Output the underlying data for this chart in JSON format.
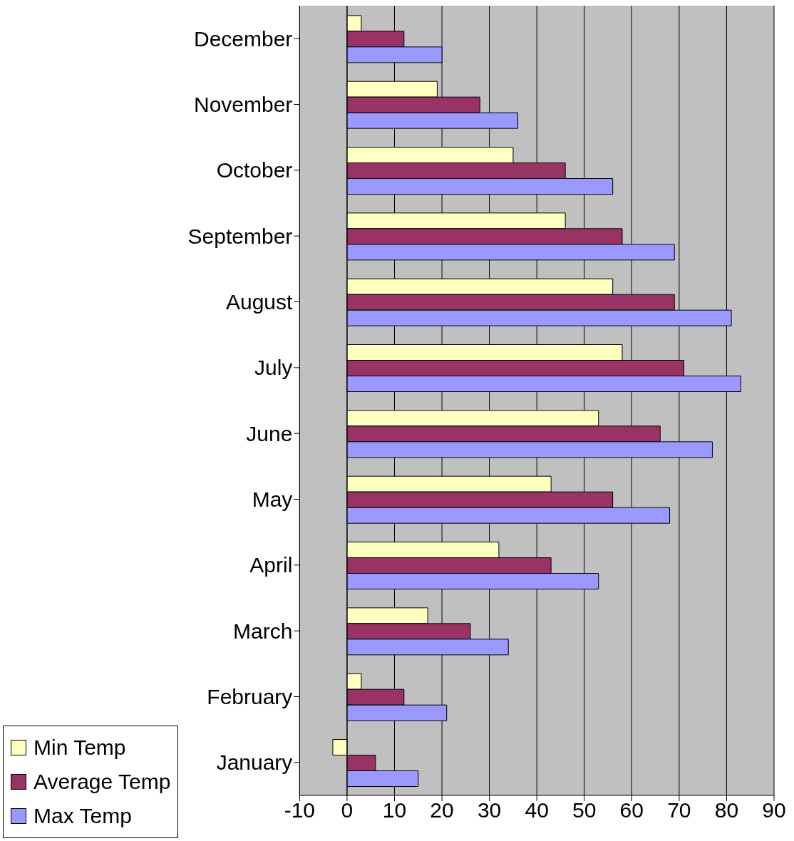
{
  "chart_data": {
    "type": "bar",
    "orientation": "horizontal",
    "categories": [
      "December",
      "November",
      "October",
      "September",
      "August",
      "July",
      "June",
      "May",
      "April",
      "March",
      "February",
      "January"
    ],
    "series": [
      {
        "name": "Min Temp",
        "color": "#ffffc0",
        "values": [
          3,
          19,
          35,
          46,
          56,
          58,
          53,
          43,
          32,
          17,
          3,
          -3
        ]
      },
      {
        "name": "Average Temp",
        "color": "#993366",
        "values": [
          12,
          28,
          46,
          58,
          69,
          71,
          66,
          56,
          43,
          26,
          12,
          6
        ]
      },
      {
        "name": "Max Temp",
        "color": "#9999ff",
        "values": [
          20,
          36,
          56,
          69,
          81,
          83,
          77,
          68,
          53,
          34,
          21,
          15
        ]
      }
    ],
    "xlim": [
      -10,
      90
    ],
    "xticks": [
      -10,
      0,
      10,
      20,
      30,
      40,
      50,
      60,
      70,
      80,
      90
    ],
    "grid": "x",
    "legend": "bottom left"
  }
}
